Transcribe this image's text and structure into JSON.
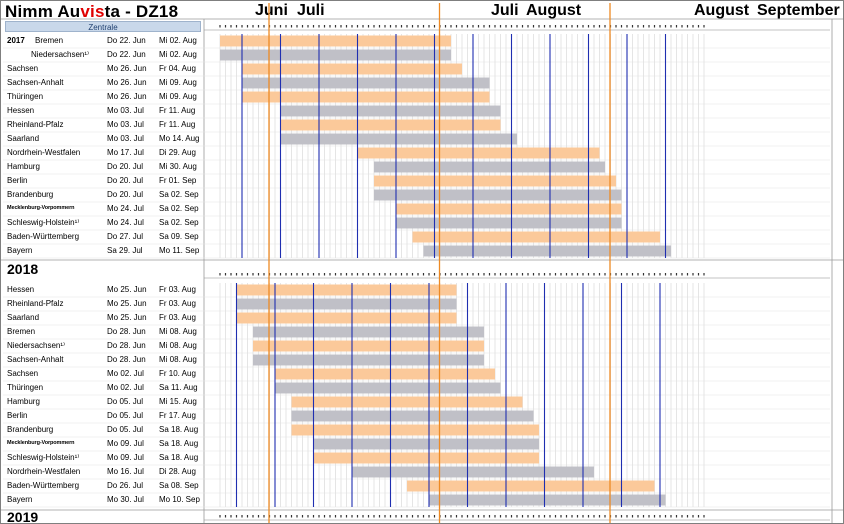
{
  "title": {
    "pre": "Nimm Au",
    "highlight": "vis",
    "post": "ta - DZ18"
  },
  "header": {
    "zentrale": "Zentrale",
    "months": [
      "Juni",
      "Juli",
      "Juli",
      "August",
      "August",
      "September"
    ]
  },
  "sections": [
    {
      "year": "2017",
      "rows": [
        {
          "state": "Bremen",
          "start": "Do 22. Jun",
          "end": "Mi 02. Aug",
          "s": 22,
          "e": 63
        },
        {
          "state": "Niedersachsen¹⁾",
          "start": "Do 22. Jun",
          "end": "Mi 02. Aug",
          "s": 22,
          "e": 63
        },
        {
          "state": "Sachsen",
          "start": "Mo 26. Jun",
          "end": "Fr 04. Aug",
          "s": 26,
          "e": 65
        },
        {
          "state": "Sachsen-Anhalt",
          "start": "Mo 26. Jun",
          "end": "Mi 09. Aug",
          "s": 26,
          "e": 70
        },
        {
          "state": "Thüringen",
          "start": "Mo 26. Jun",
          "end": "Mi 09. Aug",
          "s": 26,
          "e": 70
        },
        {
          "state": "Hessen",
          "start": "Mo 03. Jul",
          "end": "Fr 11. Aug",
          "s": 33,
          "e": 72
        },
        {
          "state": "Rheinland-Pfalz",
          "start": "Mo 03. Jul",
          "end": "Fr 11. Aug",
          "s": 33,
          "e": 72
        },
        {
          "state": "Saarland",
          "start": "Mo 03. Jul",
          "end": "Mo 14. Aug",
          "s": 33,
          "e": 75
        },
        {
          "state": "Nordrhein-Westfalen",
          "start": "Mo 17. Jul",
          "end": "Di 29. Aug",
          "s": 47,
          "e": 90
        },
        {
          "state": "Hamburg",
          "start": "Do 20. Jul",
          "end": "Mi 30. Aug",
          "s": 50,
          "e": 91
        },
        {
          "state": "Berlin",
          "start": "Do 20. Jul",
          "end": "Fr 01. Sep",
          "s": 50,
          "e": 93
        },
        {
          "state": "Brandenburg",
          "start": "Do 20. Jul",
          "end": "Sa 02. Sep",
          "s": 50,
          "e": 94
        },
        {
          "state": "Mecklenburg-Vorpommern",
          "start": "Mo 24. Jul",
          "end": "Sa 02. Sep",
          "s": 54,
          "e": 94
        },
        {
          "state": "Schleswig-Holstein¹⁾",
          "start": "Mo 24. Jul",
          "end": "Sa 02. Sep",
          "s": 54,
          "e": 94
        },
        {
          "state": "Baden-Württemberg",
          "start": "Do 27. Jul",
          "end": "Sa 09. Sep",
          "s": 57,
          "e": 101
        },
        {
          "state": "Bayern",
          "start": "Sa 29. Jul",
          "end": "Mo 11. Sep",
          "s": 59,
          "e": 103
        }
      ]
    },
    {
      "year": "2018",
      "rows": [
        {
          "state": "Hessen",
          "start": "Mo 25. Jun",
          "end": "Fr 03. Aug",
          "s": 25,
          "e": 64
        },
        {
          "state": "Rheinland-Pfalz",
          "start": "Mo 25. Jun",
          "end": "Fr 03. Aug",
          "s": 25,
          "e": 64
        },
        {
          "state": "Saarland",
          "start": "Mo 25. Jun",
          "end": "Fr 03. Aug",
          "s": 25,
          "e": 64
        },
        {
          "state": "Bremen",
          "start": "Do 28. Jun",
          "end": "Mi 08. Aug",
          "s": 28,
          "e": 69
        },
        {
          "state": "Niedersachsen¹⁾",
          "start": "Do 28. Jun",
          "end": "Mi 08. Aug",
          "s": 28,
          "e": 69
        },
        {
          "state": "Sachsen-Anhalt",
          "start": "Do 28. Jun",
          "end": "Mi 08. Aug",
          "s": 28,
          "e": 69
        },
        {
          "state": "Sachsen",
          "start": "Mo 02. Jul",
          "end": "Fr 10. Aug",
          "s": 32,
          "e": 71
        },
        {
          "state": "Thüringen",
          "start": "Mo 02. Jul",
          "end": "Sa 11. Aug",
          "s": 32,
          "e": 72
        },
        {
          "state": "Hamburg",
          "start": "Do 05. Jul",
          "end": "Mi 15. Aug",
          "s": 35,
          "e": 76
        },
        {
          "state": "Berlin",
          "start": "Do 05. Jul",
          "end": "Fr 17. Aug",
          "s": 35,
          "e": 78
        },
        {
          "state": "Brandenburg",
          "start": "Do 05. Jul",
          "end": "Sa 18. Aug",
          "s": 35,
          "e": 79
        },
        {
          "state": "Mecklenburg-Vorpommern",
          "start": "Mo 09. Jul",
          "end": "Sa 18. Aug",
          "s": 39,
          "e": 79
        },
        {
          "state": "Schleswig-Holstein¹⁾",
          "start": "Mo 09. Jul",
          "end": "Sa 18. Aug",
          "s": 39,
          "e": 79
        },
        {
          "state": "Nordrhein-Westfalen",
          "start": "Mo 16. Jul",
          "end": "Di 28. Aug",
          "s": 46,
          "e": 89
        },
        {
          "state": "Baden-Württemberg",
          "start": "Do 26. Jul",
          "end": "Sa 08. Sep",
          "s": 56,
          "e": 100
        },
        {
          "state": "Bayern",
          "start": "Mo 30. Jul",
          "end": "Mo 10. Sep",
          "s": 60,
          "e": 102
        }
      ]
    },
    {
      "year": "2019",
      "rows": []
    }
  ],
  "colors": {
    "orange": "#fbc99a",
    "grey": "#c0c0c7",
    "blueline": "#1f2fb0",
    "orangeline": "#ee8a24",
    "grid": "#d4d4d4"
  }
}
